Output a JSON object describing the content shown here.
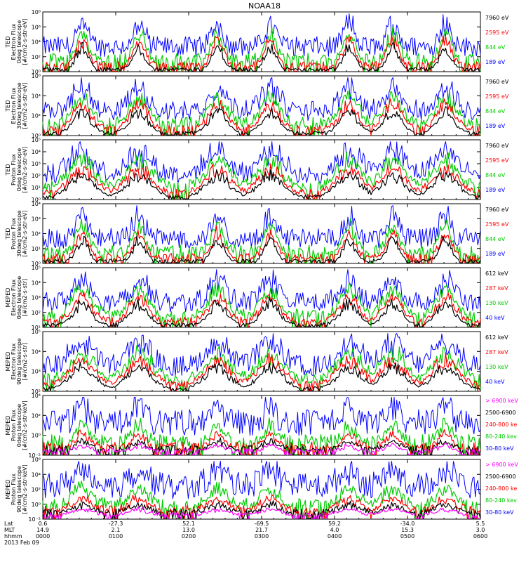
{
  "title": "NOAA18",
  "colors": {
    "blue": "#0000ff",
    "red": "#ff0000",
    "green": "#00cc00",
    "black": "#000000",
    "magenta": "#ff00ff"
  },
  "chart_data": {
    "type": "line",
    "title": "NOAA18",
    "x": [
      "0000",
      "0100",
      "0200",
      "0300",
      "0400",
      "0500",
      "0600"
    ],
    "footer": {
      "row_labels": [
        "Lat",
        "MLT",
        "hhmm",
        "2013 Feb 09"
      ],
      "ticks": [
        {
          "lat": "0.6",
          "mlt": "14.9",
          "hhmm": "0000"
        },
        {
          "lat": "-27.3",
          "mlt": "2.1",
          "hhmm": "0100"
        },
        {
          "lat": "52.1",
          "mlt": "13.0",
          "hhmm": "0200"
        },
        {
          "lat": "-69.5",
          "mlt": "21.7",
          "hhmm": "0300"
        },
        {
          "lat": "59.2",
          "mlt": "4.0",
          "hhmm": "0400"
        },
        {
          "lat": "-34.0",
          "mlt": "15.3",
          "hhmm": "0500"
        },
        {
          "lat": "5.5",
          "mlt": "3.0",
          "hhmm": "0600"
        }
      ]
    },
    "panels": [
      {
        "ylabel": [
          "TED",
          "Electron Flux",
          "0deg telescope",
          "[#/cm2-s-str-eV]"
        ],
        "yticks": [
          "10⁰",
          "10²",
          "10⁴",
          "10⁶",
          "10⁸"
        ],
        "ylim_exp": [
          0,
          8
        ],
        "series": [
          {
            "name": "7960 eV",
            "color": "#000000"
          },
          {
            "name": "2595 eV",
            "color": "#ff0000"
          },
          {
            "name": "844 eV",
            "color": "#00cc00"
          },
          {
            "name": "189 eV",
            "color": "#0000ff"
          }
        ]
      },
      {
        "ylabel": [
          "TED",
          "Electron Flux",
          "30deg telescope",
          "[#/cm2-s-str-eV]"
        ],
        "yticks": [
          "10⁰",
          "10²",
          "10⁴",
          "10⁶"
        ],
        "ylim_exp": [
          0,
          6
        ],
        "series": [
          {
            "name": "7960 eV",
            "color": "#000000"
          },
          {
            "name": "2595 eV",
            "color": "#ff0000"
          },
          {
            "name": "844 eV",
            "color": "#00cc00"
          },
          {
            "name": "189 eV",
            "color": "#0000ff"
          }
        ]
      },
      {
        "ylabel": [
          "TED",
          "Proton Flux",
          "0deg telescope",
          "[#/cm2-s-str-eV]"
        ],
        "yticks": [
          "10⁰",
          "10¹",
          "10²",
          "10³",
          "10⁴",
          "10⁵"
        ],
        "ylim_exp": [
          0,
          5
        ],
        "series": [
          {
            "name": "7960 eV",
            "color": "#000000"
          },
          {
            "name": "2595 eV",
            "color": "#ff0000"
          },
          {
            "name": "844 eV",
            "color": "#00cc00"
          },
          {
            "name": "189 eV",
            "color": "#0000ff"
          }
        ]
      },
      {
        "ylabel": [
          "TED",
          "Proton Flux",
          "30deg telescope",
          "[#/cm2-s-str-eV]"
        ],
        "yticks": [
          "10⁰",
          "10¹",
          "10²",
          "10³",
          "10⁴"
        ],
        "ylim_exp": [
          0,
          4
        ],
        "series": [
          {
            "name": "7960 eV",
            "color": "#000000"
          },
          {
            "name": "2595 eV",
            "color": "#ff0000"
          },
          {
            "name": "844 eV",
            "color": "#00cc00"
          },
          {
            "name": "189 eV",
            "color": "#0000ff"
          }
        ]
      },
      {
        "ylabel": [
          "MEPED",
          "Electron Flux",
          "0deg telescope",
          "[#/cm2-s-str]"
        ],
        "yticks": [
          "10¹",
          "10²",
          "10³",
          "10⁴",
          "10⁵"
        ],
        "ylim_exp": [
          1,
          5
        ],
        "series": [
          {
            "name": "612 keV",
            "color": "#000000"
          },
          {
            "name": "287 keV",
            "color": "#ff0000"
          },
          {
            "name": "130 keV",
            "color": "#00cc00"
          },
          {
            "name": "40 keV",
            "color": "#0000ff"
          }
        ]
      },
      {
        "ylabel": [
          "MEPED",
          "Electron Flux",
          "90deg telescope",
          "[#/cm2-s-str]"
        ],
        "yticks": [
          "10²",
          "10³",
          "10⁴",
          "10⁵"
        ],
        "ylim_exp": [
          2,
          5
        ],
        "series": [
          {
            "name": "612 keV",
            "color": "#000000"
          },
          {
            "name": "287 keV",
            "color": "#ff0000"
          },
          {
            "name": "130 keV",
            "color": "#00cc00"
          },
          {
            "name": "40 keV",
            "color": "#0000ff"
          }
        ]
      },
      {
        "ylabel": [
          "MEPED",
          "Proton Flux",
          "0deg telescope",
          "[#/cm2-s-str-keV]"
        ],
        "yticks": [
          "10⁻²",
          "10⁰",
          "10²",
          "10⁴"
        ],
        "ylim_exp": [
          -2,
          4
        ],
        "series": [
          {
            "name": "> 6900 keV",
            "color": "#ff00ff"
          },
          {
            "name": "2500-6900",
            "color": "#000000"
          },
          {
            "name": "240-800 ke",
            "color": "#ff0000"
          },
          {
            "name": "80-240 kev",
            "color": "#00cc00"
          },
          {
            "name": "30-80 keV",
            "color": "#0000ff"
          }
        ]
      },
      {
        "ylabel": [
          "MEPED",
          "Proton Flux",
          "90deg telescope",
          "[#/cm2-s-str-keV]"
        ],
        "yticks": [
          "10⁻²",
          "10⁰",
          "10²",
          "10⁴",
          "10⁶"
        ],
        "ylim_exp": [
          -2,
          6
        ],
        "series": [
          {
            "name": "> 6900 keV",
            "color": "#ff00ff"
          },
          {
            "name": "2500-6900",
            "color": "#000000"
          },
          {
            "name": "240-800 ke",
            "color": "#ff0000"
          },
          {
            "name": "80-240 kev",
            "color": "#00cc00"
          },
          {
            "name": "30-80 keV",
            "color": "#0000ff"
          }
        ]
      }
    ]
  }
}
